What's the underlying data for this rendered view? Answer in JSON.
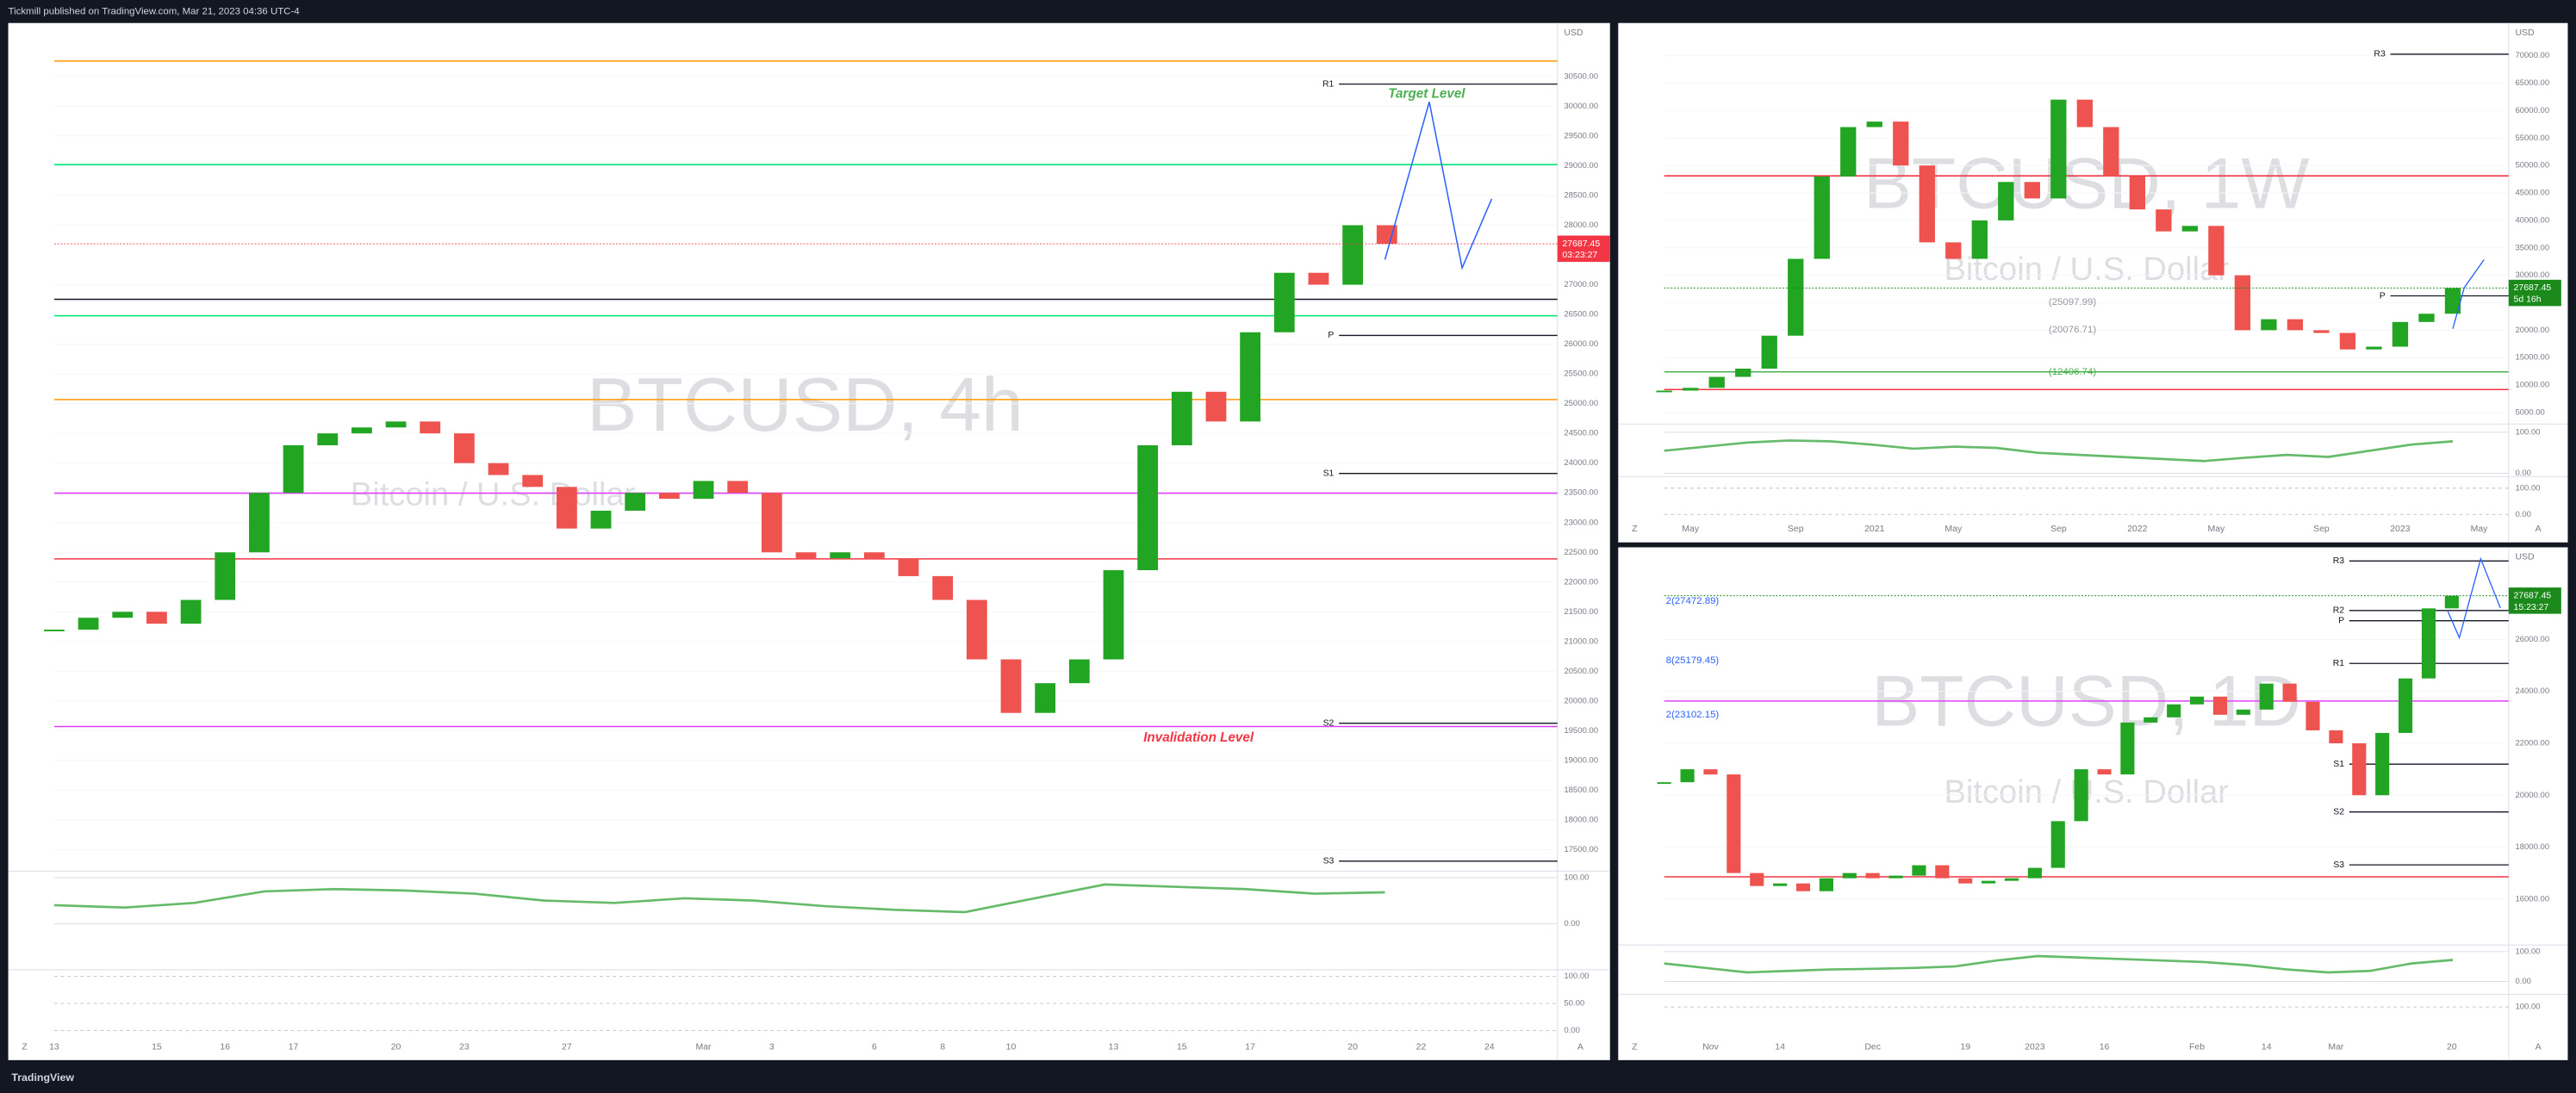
{
  "header": {
    "text": "Tickmill published on TradingView.com, Mar 21, 2023 04:36 UTC-4"
  },
  "footer": {
    "brand": "TradingView"
  },
  "chart_data": [
    {
      "type": "candlestick",
      "title": "BTCUSD, 4h",
      "subtitle": "Bitcoin / U.S. Dollar",
      "currency": "USD",
      "scale_buttons": [
        "Z",
        "A"
      ],
      "up_color": "#22a522",
      "down_color": "#ef5350",
      "categories": [
        "13",
        null,
        null,
        "15",
        null,
        "16",
        null,
        "17",
        null,
        null,
        "20",
        null,
        "23",
        null,
        null,
        "27",
        null,
        null,
        null,
        "Mar",
        null,
        "3",
        null,
        null,
        "6",
        null,
        "8",
        null,
        "10",
        null,
        null,
        "13",
        null,
        "15",
        null,
        "17",
        null,
        null,
        "20",
        null,
        "22",
        null,
        "24"
      ],
      "values": [
        21200,
        21400,
        21500,
        21300,
        21700,
        22500,
        23500,
        24300,
        24500,
        24600,
        24700,
        24500,
        24000,
        23800,
        23600,
        22900,
        23200,
        23500,
        23400,
        23700,
        23500,
        22500,
        22400,
        22500,
        22400,
        22100,
        21700,
        20700,
        19800,
        20300,
        20700,
        22200,
        24300,
        25200,
        24700,
        26200,
        27200,
        27000,
        28000,
        27687.45,
        null,
        null,
        null
      ],
      "ylim": [
        17140,
        31400
      ],
      "yticks": [
        {
          "value": 17500,
          "label": "17500.00"
        },
        {
          "value": 18000,
          "label": "18000.00"
        },
        {
          "value": 18500,
          "label": "18500.00"
        },
        {
          "value": 19000,
          "label": "19000.00"
        },
        {
          "value": 19500,
          "label": "19500.00"
        },
        {
          "value": 20000,
          "label": "20000.00"
        },
        {
          "value": 20500,
          "label": "20500.00"
        },
        {
          "value": 21000,
          "label": "21000.00"
        },
        {
          "value": 21500,
          "label": "21500.00"
        },
        {
          "value": 22000,
          "label": "22000.00"
        },
        {
          "value": 22500,
          "label": "22500.00"
        },
        {
          "value": 23000,
          "label": "23000.00"
        },
        {
          "value": 23500,
          "label": "23500.00"
        },
        {
          "value": 24000,
          "label": "24000.00"
        },
        {
          "value": 24500,
          "label": "24500.00"
        },
        {
          "value": 25000,
          "label": "25000.00"
        },
        {
          "value": 25500,
          "label": "25500.00"
        },
        {
          "value": 26000,
          "label": "26000.00"
        },
        {
          "value": 26500,
          "label": "26500.00"
        },
        {
          "value": 27000,
          "label": "27000.00"
        },
        {
          "value": 28000,
          "label": "28000.00"
        },
        {
          "value": 28500,
          "label": "28500.00"
        },
        {
          "value": 29000,
          "label": "29000.00"
        },
        {
          "value": 29500,
          "label": "29500.00"
        },
        {
          "value": 30000,
          "label": "30000.00"
        },
        {
          "value": 30500,
          "label": "30500.00"
        }
      ],
      "last_price": 27687.45,
      "countdown": "03:23:27",
      "last_price_color": "#f23645",
      "levels": [
        {
          "label": "R1",
          "value": 30373,
          "color": "#131722"
        },
        {
          "label": "P",
          "value": 26147,
          "color": "#131722"
        },
        {
          "label": "S1",
          "value": 23826,
          "color": "#131722"
        },
        {
          "label": "S2",
          "value": 19627,
          "color": "#131722"
        },
        {
          "label": "S3",
          "value": 17307,
          "color": "#131722"
        }
      ],
      "lines": [
        {
          "value": 26754,
          "color": "#131722"
        },
        {
          "value": 22390,
          "color": "#f23645"
        },
        {
          "value": 23495,
          "color": "#e040fb"
        },
        {
          "value": 19572,
          "color": "#e040fb"
        },
        {
          "value": 30760,
          "color": "#ff9800"
        },
        {
          "value": 25069,
          "color": "#ff9800"
        },
        {
          "value": 29020,
          "color": "#00e676"
        },
        {
          "value": 26478,
          "color": "#00e676"
        }
      ],
      "annotations": [
        {
          "text": "Target Level",
          "value": 30200,
          "color": "#4caf50"
        },
        {
          "text": "Invalidation Level",
          "value": 19378,
          "color": "#f23645"
        }
      ],
      "oscillator": {
        "color": "#66bb6a",
        "values": [
          40,
          35,
          45,
          70,
          75,
          72,
          65,
          50,
          45,
          55,
          50,
          38,
          30,
          25,
          55,
          85,
          80,
          75,
          65,
          68
        ],
        "ylim": [
          -100,
          114
        ],
        "yticks": [
          {
            "value": 100,
            "label": "100.00"
          },
          {
            "value": 0,
            "label": "0.00"
          }
        ]
      },
      "stochastic": {
        "ylim": [
          -9,
          112
        ],
        "yticks": [
          {
            "value": 100,
            "label": "100.00"
          },
          {
            "value": 50,
            "label": "50.00"
          },
          {
            "value": 0,
            "label": "0.00"
          }
        ]
      }
    },
    {
      "type": "candlestick",
      "title": "BTCUSD, 1W",
      "subtitle": "Bitcoin / U.S. Dollar",
      "currency": "USD",
      "scale_buttons": [
        "Z",
        "A"
      ],
      "up_color": "#22a522",
      "down_color": "#ef5350",
      "categories": [
        null,
        "May",
        null,
        null,
        null,
        "Sep",
        null,
        null,
        "2021",
        null,
        null,
        "May",
        null,
        null,
        null,
        "Sep",
        null,
        null,
        "2022",
        null,
        null,
        "May",
        null,
        null,
        null,
        "Sep",
        null,
        null,
        "2023",
        null,
        null,
        "May"
      ],
      "values": [
        9000,
        9500,
        11500,
        13000,
        19000,
        33000,
        48000,
        57000,
        58000,
        50000,
        36000,
        33000,
        40000,
        47000,
        44000,
        62000,
        57000,
        48000,
        42000,
        38000,
        39000,
        30000,
        20000,
        22000,
        20000,
        19500,
        16500,
        17000,
        21500,
        23000,
        27687.45,
        null
      ],
      "ylim": [
        2904,
        75958
      ],
      "yticks": [
        {
          "value": 5000,
          "label": "5000.00"
        },
        {
          "value": 10000,
          "label": "10000.00"
        },
        {
          "value": 15000,
          "label": "15000.00"
        },
        {
          "value": 20000,
          "label": "20000.00"
        },
        {
          "value": 25000,
          "label": "25000.00"
        },
        {
          "value": 30000,
          "label": "30000.00"
        },
        {
          "value": 35000,
          "label": "35000.00"
        },
        {
          "value": 40000,
          "label": "40000.00"
        },
        {
          "value": 45000,
          "label": "45000.00"
        },
        {
          "value": 50000,
          "label": "50000.00"
        },
        {
          "value": 55000,
          "label": "55000.00"
        },
        {
          "value": 60000,
          "label": "60000.00"
        },
        {
          "value": 65000,
          "label": "65000.00"
        },
        {
          "value": 70000,
          "label": "70000.00"
        }
      ],
      "last_price": 27687.45,
      "countdown": "5d 16h",
      "last_price_color": "#1b8a1b",
      "levels": [
        {
          "label": "R3",
          "value": 70269,
          "color": "#131722"
        },
        {
          "label": "P",
          "value": 26257,
          "color": "#131722"
        }
      ],
      "lines": [
        {
          "value": 48114,
          "color": "#f23645"
        },
        {
          "value": 9192,
          "color": "#f23645"
        },
        {
          "value": 12406.74,
          "color": "#4caf50"
        }
      ],
      "annotations": [
        {
          "text": "(25097.99)",
          "value": 25097.99,
          "color": "#9598a1"
        },
        {
          "text": "(20076.71)",
          "value": 20076.71,
          "color": "#9598a1"
        },
        {
          "text": "(12406.74)",
          "value": 12406.74,
          "color": "#4caf50"
        }
      ],
      "oscillator": {
        "color": "#66bb6a",
        "values": [
          55,
          65,
          75,
          80,
          78,
          70,
          60,
          65,
          62,
          50,
          45,
          40,
          35,
          30,
          38,
          45,
          40,
          55,
          70,
          78
        ],
        "ylim": [
          -8,
          120
        ],
        "yticks": [
          {
            "value": 100,
            "label": "100.00"
          },
          {
            "value": 0,
            "label": "0.00"
          }
        ]
      },
      "stochastic": {
        "ylim": [
          -12.5,
          144
        ],
        "yticks": [
          {
            "value": 100,
            "label": "100.00"
          },
          {
            "value": 0,
            "label": "0.00"
          }
        ]
      }
    },
    {
      "type": "candlestick",
      "title": "BTCUSD, 1D",
      "subtitle": "Bitcoin / U.S. Dollar",
      "currency": "USD",
      "scale_buttons": [
        "Z",
        "A"
      ],
      "up_color": "#22a522",
      "down_color": "#ef5350",
      "categories": [
        null,
        null,
        "Nov",
        null,
        null,
        "14",
        null,
        null,
        null,
        "Dec",
        null,
        null,
        null,
        "19",
        null,
        null,
        "2023",
        null,
        null,
        "16",
        null,
        null,
        null,
        "Feb",
        null,
        null,
        "14",
        null,
        null,
        "Mar",
        null,
        null,
        null,
        null,
        "20"
      ],
      "values": [
        20500,
        21000,
        20800,
        17000,
        16500,
        16600,
        16300,
        16800,
        17000,
        16800,
        16900,
        17300,
        16800,
        16600,
        16700,
        16800,
        17200,
        19000,
        21000,
        20800,
        22800,
        23000,
        23500,
        23800,
        23100,
        23300,
        24300,
        23600,
        22500,
        22000,
        20000,
        22400,
        24500,
        27200,
        27687.45
      ],
      "ylim": [
        14224,
        29553
      ],
      "yticks": [
        {
          "value": 16000,
          "label": "16000.00"
        },
        {
          "value": 18000,
          "label": "18000.00"
        },
        {
          "value": 20000,
          "label": "20000.00"
        },
        {
          "value": 22000,
          "label": "22000.00"
        },
        {
          "value": 24000,
          "label": "24000.00"
        },
        {
          "value": 26000,
          "label": "26000.00"
        }
      ],
      "last_price": 27687.45,
      "countdown": "15:23:27",
      "last_price_color": "#1b8a1b",
      "levels": [
        {
          "label": "R3",
          "value": 29026,
          "color": "#131722"
        },
        {
          "label": "R2",
          "value": 27118,
          "color": "#131722"
        },
        {
          "label": "P",
          "value": 26724,
          "color": "#131722"
        },
        {
          "label": "R1",
          "value": 25079,
          "color": "#131722"
        },
        {
          "label": "S1",
          "value": 21197,
          "color": "#131722"
        },
        {
          "label": "S2",
          "value": 19355,
          "color": "#131722"
        },
        {
          "label": "S3",
          "value": 17316,
          "color": "#131722"
        }
      ],
      "lines": [
        {
          "value": 16855,
          "color": "#f23645"
        },
        {
          "value": 23632,
          "color": "#e040fb"
        }
      ],
      "annotations": [
        {
          "text": "2(27472.89)",
          "value": 27472.89,
          "color": "#2962ff"
        },
        {
          "text": "8(25179.45)",
          "value": 25179.45,
          "color": "#2962ff"
        },
        {
          "text": "2(23102.15)",
          "value": 23102.15,
          "color": "#2962ff"
        }
      ],
      "oscillator": {
        "color": "#66bb6a",
        "values": [
          60,
          45,
          30,
          35,
          40,
          42,
          45,
          50,
          70,
          85,
          80,
          75,
          70,
          65,
          55,
          40,
          30,
          35,
          60,
          72
        ],
        "ylim": [
          -44,
          122
        ],
        "yticks": [
          {
            "value": 100,
            "label": "100.00"
          },
          {
            "value": 0,
            "label": "0.00"
          }
        ]
      },
      "stochastic": {
        "ylim": [
          -20,
          160
        ],
        "yticks": [
          {
            "value": 100,
            "label": "100.00"
          }
        ]
      }
    }
  ]
}
